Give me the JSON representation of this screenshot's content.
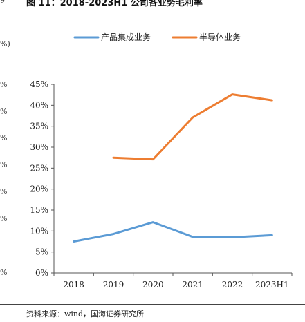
{
  "figure": {
    "title": "图 11：2018-2023H1 公司各业务毛利率",
    "source": "资料来源：wind，国海证券研究所"
  },
  "left_fragments": [
    "9",
    "%)",
    "%",
    "%",
    "%",
    "%",
    "%",
    "%",
    "%"
  ],
  "colors": {
    "blue": "#5b9bd5",
    "orange": "#ed7d31",
    "axis": "#555555"
  },
  "chart_data": {
    "type": "line",
    "title": "",
    "xlabel": "",
    "ylabel": "",
    "categories": [
      "2018",
      "2019",
      "2020",
      "2021",
      "2022",
      "2023H1"
    ],
    "ylim": [
      0,
      45
    ],
    "yticks": [
      0,
      5,
      10,
      15,
      20,
      25,
      30,
      35,
      40,
      45
    ],
    "ytick_labels": [
      "0%",
      "5%",
      "10%",
      "15%",
      "20%",
      "25%",
      "30%",
      "35%",
      "40%",
      "45%"
    ],
    "grid": false,
    "legend_position": "top",
    "series": [
      {
        "name": "产品集成业务",
        "color": "#5b9bd5",
        "values": [
          7.5,
          9.3,
          12.1,
          8.6,
          8.5,
          9.0
        ]
      },
      {
        "name": "半导体业务",
        "color": "#ed7d31",
        "values": [
          null,
          27.5,
          27.1,
          37.1,
          42.6,
          41.2
        ]
      }
    ]
  }
}
